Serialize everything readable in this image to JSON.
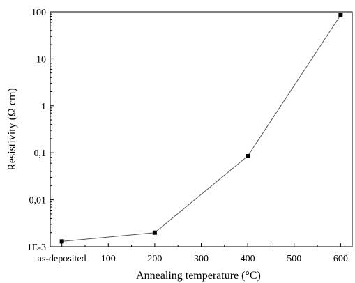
{
  "chart_data": {
    "type": "line",
    "xlabel": "Annealing temperature (°C)",
    "ylabel": "Resistivity (Ω cm)",
    "yscale": "log",
    "xlim": [
      -25,
      625
    ],
    "ylim": [
      0.001,
      100
    ],
    "x_ticks": [
      {
        "value": 0,
        "label": "as-deposited"
      },
      {
        "value": 100,
        "label": "100"
      },
      {
        "value": 200,
        "label": "200"
      },
      {
        "value": 300,
        "label": "300"
      },
      {
        "value": 400,
        "label": "400"
      },
      {
        "value": 500,
        "label": "500"
      },
      {
        "value": 600,
        "label": "600"
      }
    ],
    "y_ticks": [
      {
        "value": 0.001,
        "label": "1E-3"
      },
      {
        "value": 0.01,
        "label": "0,01"
      },
      {
        "value": 0.1,
        "label": "0,1"
      },
      {
        "value": 1,
        "label": "1"
      },
      {
        "value": 10,
        "label": "10"
      },
      {
        "value": 100,
        "label": "100"
      }
    ],
    "series": [
      {
        "x": [
          0,
          200,
          400,
          600
        ],
        "y": [
          0.0013,
          0.002,
          0.085,
          85
        ],
        "marker": "square",
        "line_color": "#555555",
        "marker_color": "#000000"
      }
    ],
    "grid": false,
    "legend": "none"
  }
}
